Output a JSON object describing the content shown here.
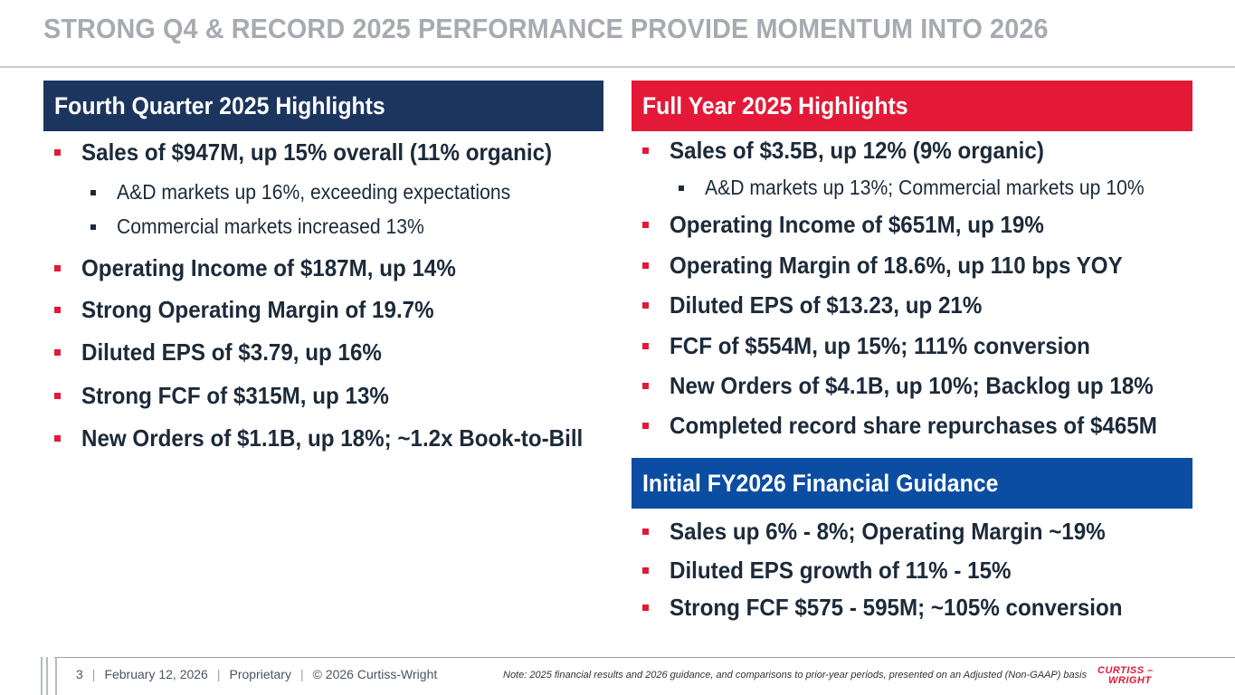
{
  "title": "STRONG Q4 & RECORD 2025 PERFORMANCE PROVIDE MOMENTUM INTO 2026",
  "colors": {
    "navy": "#1c355e",
    "red": "#e31937",
    "blue": "#0b4da2",
    "title_gray": "#a7abb1"
  },
  "q4": {
    "header": "Fourth Quarter 2025 Highlights",
    "items": [
      "Sales of $947M, up 15% overall (11% organic)",
      "A&D markets up 16%, exceeding expectations",
      "Commercial markets increased 13%",
      "Operating Income of $187M, up 14%",
      "Strong Operating Margin of 19.7%",
      "Diluted EPS of $3.79, up 16%",
      "Strong FCF of $315M, up 13%",
      "New Orders of $1.1B, up 18%; ~1.2x Book-to-Bill"
    ]
  },
  "fy": {
    "header": "Full Year 2025 Highlights",
    "items": [
      "Sales of $3.5B, up 12% (9% organic)",
      "A&D markets up 13%; Commercial markets up 10%",
      "Operating Income of $651M, up 19%",
      "Operating Margin of 18.6%, up 110 bps YOY",
      "Diluted EPS of $13.23, up 21%",
      "FCF of $554M, up 15%; 111% conversion",
      "New Orders of $4.1B, up 10%; Backlog up 18%",
      "Completed record share repurchases of $465M"
    ]
  },
  "guidance": {
    "header": "Initial FY2026 Financial Guidance",
    "items": [
      "Sales up 6% - 8%; Operating Margin ~19%",
      "Diluted EPS growth of 11% - 15%",
      "Strong FCF $575 - 595M; ~105% conversion"
    ]
  },
  "footer": {
    "page": "3",
    "date": "February 12, 2026",
    "classification": "Proprietary",
    "copyright": "© 2026 Curtiss-Wright",
    "note": "Note: 2025 financial results and 2026 guidance, and comparisons to prior-year periods, presented on an Adjusted (Non-GAAP) basis",
    "logo_line1": "CURTISS –",
    "logo_line2": "WRIGHT"
  }
}
